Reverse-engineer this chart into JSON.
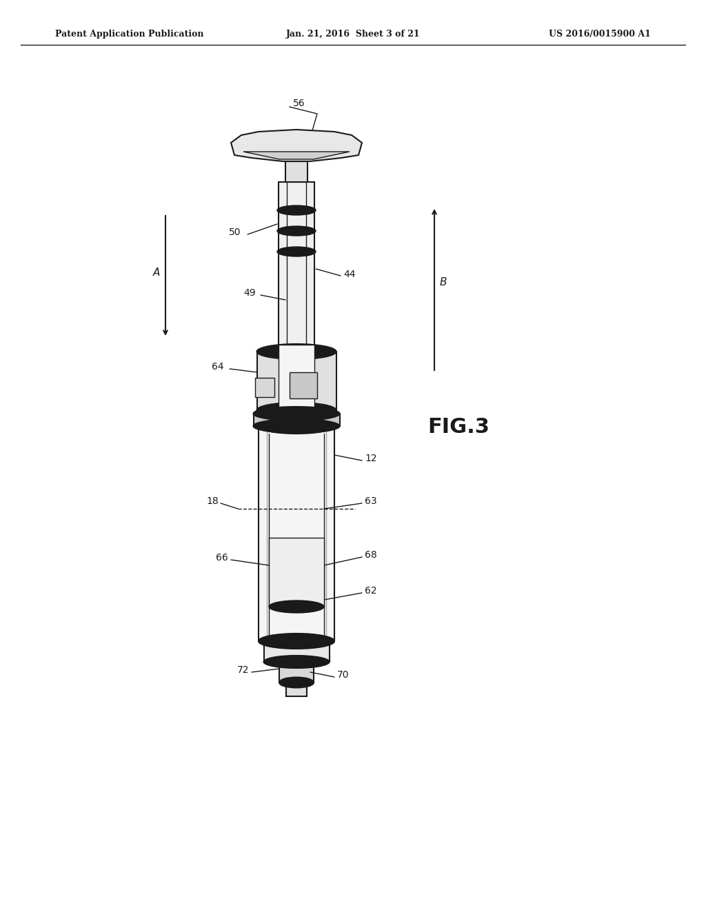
{
  "bg_color": "#ffffff",
  "line_color": "#1a1a1a",
  "header_left": "Patent Application Publication",
  "header_center": "Jan. 21, 2016  Sheet 3 of 21",
  "header_right": "US 2016/0015900 A1",
  "fig_label": "FIG.3"
}
